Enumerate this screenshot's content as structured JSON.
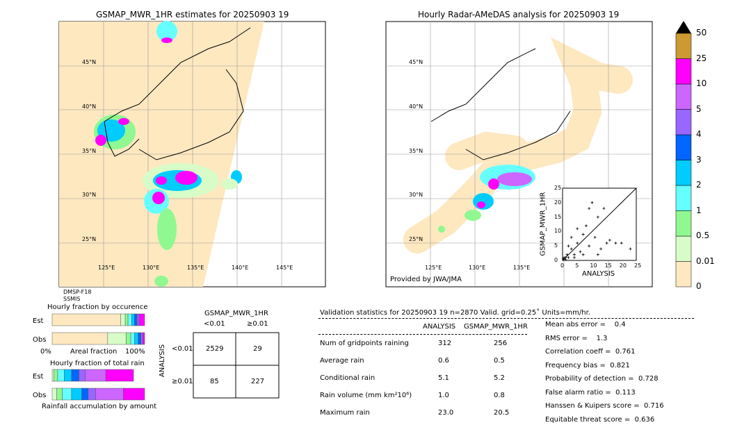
{
  "left_map": {
    "title": "GSMAP_MWR_1HR estimates for 20250903 19",
    "sensor": [
      "DMSP-F18",
      "SSMIS"
    ]
  },
  "right_map": {
    "title": "Hourly Radar-AMeDAS analysis for 20250903 19",
    "credit": "Provided by JWA/JMA"
  },
  "lat_labels": [
    "45°N",
    "40°N",
    "35°N",
    "30°N",
    "25°N"
  ],
  "lon_labels": [
    "125°E",
    "130°E",
    "135°E",
    "140°E",
    "145°E"
  ],
  "colorbar": {
    "labels": [
      "0",
      "0.01",
      "0.5",
      "1",
      "2",
      "3",
      "4",
      "5",
      "10",
      "25",
      "50"
    ],
    "colors": [
      "#fde8c0",
      "#d8fcc8",
      "#90f890",
      "#66ffff",
      "#00ccff",
      "#0066ff",
      "#9966ff",
      "#cc66ff",
      "#ff00ff",
      "#cc9933"
    ],
    "over_color": "#000000"
  },
  "chart_data": [
    {
      "type": "scatter",
      "xlabel": "ANALYSIS",
      "ylabel": "GSMAP_MWR_1HR",
      "xlim": [
        0,
        25
      ],
      "ylim": [
        0,
        25
      ],
      "ticks": [
        "0",
        "5",
        "10",
        "15",
        "20",
        "25"
      ],
      "points": [
        [
          0.5,
          1
        ],
        [
          1,
          0.3
        ],
        [
          1.5,
          2
        ],
        [
          2,
          1
        ],
        [
          3,
          4
        ],
        [
          4,
          2
        ],
        [
          5,
          6
        ],
        [
          6,
          3
        ],
        [
          7,
          9
        ],
        [
          8,
          12
        ],
        [
          9,
          18
        ],
        [
          10,
          20
        ],
        [
          11,
          8
        ],
        [
          12,
          15
        ],
        [
          13,
          4
        ],
        [
          15,
          6
        ],
        [
          16,
          7
        ],
        [
          18,
          6
        ],
        [
          20,
          6
        ],
        [
          23,
          4
        ],
        [
          3,
          8
        ],
        [
          5,
          11
        ],
        [
          2,
          5
        ],
        [
          7,
          2
        ],
        [
          9,
          5
        ],
        [
          12,
          2
        ],
        [
          14,
          18
        ],
        [
          1,
          1
        ],
        [
          0.3,
          0.5
        ],
        [
          4,
          1
        ]
      ]
    },
    {
      "type": "bar",
      "title": "Hourly fraction by occurence",
      "xlabel": "Areal fraction",
      "x_tick_labels": [
        "0%",
        "100%"
      ],
      "categories": [
        "Est",
        "Obs"
      ]
    },
    {
      "type": "bar",
      "title": "Hourly fraction of total rain",
      "xlabel": "Rainfall accumulation by amount",
      "categories": [
        "Est",
        "Obs"
      ]
    },
    {
      "type": "table",
      "title": "GSMAP_MWR_1HR",
      "col_labels": [
        "<0.01",
        "≥0.01"
      ],
      "row_title": "ANALYSIS",
      "row_labels": [
        "<0.01",
        "≥0.01"
      ],
      "cells": [
        [
          "2529",
          "29"
        ],
        [
          "85",
          "227"
        ]
      ]
    }
  ],
  "stats": {
    "header": "Validation statistics for 20250903 19  n=2870 Valid. grid=0.25˚ Units=mm/hr.",
    "cols": [
      "ANALYSIS",
      "GSMAP_MWR_1HR"
    ],
    "rows": [
      {
        "label": "Num of gridpoints raining",
        "a": "312",
        "g": "256"
      },
      {
        "label": "Average rain",
        "a": "0.6",
        "g": "0.5"
      },
      {
        "label": "Conditional rain",
        "a": "5.1",
        "g": "5.2"
      },
      {
        "label": "Rain volume (mm km²10⁶)",
        "a": "1.0",
        "g": "0.8"
      },
      {
        "label": "Maximum rain",
        "a": "23.0",
        "g": "20.5"
      }
    ],
    "scores": [
      "Mean abs error =    0.4",
      "RMS error =    1.3",
      "Correlation coeff =  0.761",
      "Frequency bias =  0.821",
      "Probability of detection =  0.728",
      "False alarm ratio =  0.113",
      "Hanssen & Kuipers score =  0.716",
      "Equitable threat score =  0.636"
    ]
  }
}
